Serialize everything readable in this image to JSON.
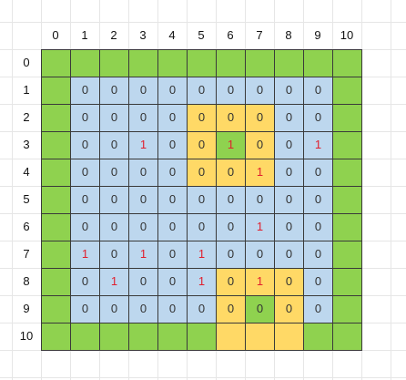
{
  "grid": {
    "column_headers": [
      "0",
      "1",
      "2",
      "3",
      "4",
      "5",
      "6",
      "7",
      "8",
      "9",
      "10"
    ],
    "row_headers": [
      "0",
      "1",
      "2",
      "3",
      "4",
      "5",
      "6",
      "7",
      "8",
      "9",
      "10"
    ],
    "colors": {
      "G": "#8fd24f",
      "B": "#bdd7ee",
      "Y": "#ffd966",
      "text": "#333333",
      "highlight_text": "#e0202e",
      "border": "#3a3a3a"
    },
    "legend_of_codes": "G = green border cell, B = blue cell, Y = yellow highlighted cell",
    "cell_colors": [
      [
        "G",
        "G",
        "G",
        "G",
        "G",
        "G",
        "G",
        "G",
        "G",
        "G",
        "G"
      ],
      [
        "G",
        "B",
        "B",
        "B",
        "B",
        "B",
        "B",
        "B",
        "B",
        "B",
        "G"
      ],
      [
        "G",
        "B",
        "B",
        "B",
        "B",
        "Y",
        "Y",
        "Y",
        "B",
        "B",
        "G"
      ],
      [
        "G",
        "B",
        "B",
        "B",
        "B",
        "Y",
        "G",
        "Y",
        "B",
        "B",
        "G"
      ],
      [
        "G",
        "B",
        "B",
        "B",
        "B",
        "Y",
        "Y",
        "Y",
        "B",
        "B",
        "G"
      ],
      [
        "G",
        "B",
        "B",
        "B",
        "B",
        "B",
        "B",
        "B",
        "B",
        "B",
        "G"
      ],
      [
        "G",
        "B",
        "B",
        "B",
        "B",
        "B",
        "B",
        "B",
        "B",
        "B",
        "G"
      ],
      [
        "G",
        "B",
        "B",
        "B",
        "B",
        "B",
        "B",
        "B",
        "B",
        "B",
        "G"
      ],
      [
        "G",
        "B",
        "B",
        "B",
        "B",
        "B",
        "Y",
        "Y",
        "Y",
        "B",
        "G"
      ],
      [
        "G",
        "B",
        "B",
        "B",
        "B",
        "B",
        "Y",
        "G",
        "Y",
        "B",
        "G"
      ],
      [
        "G",
        "G",
        "G",
        "G",
        "G",
        "G",
        "Y",
        "Y",
        "Y",
        "G",
        "G"
      ]
    ],
    "cell_values": [
      [
        "",
        "",
        "",
        "",
        "",
        "",
        "",
        "",
        "",
        "",
        ""
      ],
      [
        "",
        "0",
        "0",
        "0",
        "0",
        "0",
        "0",
        "0",
        "0",
        "0",
        ""
      ],
      [
        "",
        "0",
        "0",
        "0",
        "0",
        "0",
        "0",
        "0",
        "0",
        "0",
        ""
      ],
      [
        "",
        "0",
        "0",
        "1",
        "0",
        "0",
        "1",
        "0",
        "0",
        "1",
        ""
      ],
      [
        "",
        "0",
        "0",
        "0",
        "0",
        "0",
        "0",
        "1",
        "0",
        "0",
        ""
      ],
      [
        "",
        "0",
        "0",
        "0",
        "0",
        "0",
        "0",
        "0",
        "0",
        "0",
        ""
      ],
      [
        "",
        "0",
        "0",
        "0",
        "0",
        "0",
        "0",
        "1",
        "0",
        "0",
        ""
      ],
      [
        "",
        "1",
        "0",
        "1",
        "0",
        "1",
        "0",
        "0",
        "0",
        "0",
        ""
      ],
      [
        "",
        "0",
        "1",
        "0",
        "0",
        "1",
        "0",
        "1",
        "0",
        "0",
        ""
      ],
      [
        "",
        "0",
        "0",
        "0",
        "0",
        "0",
        "0",
        "0",
        "0",
        "0",
        ""
      ],
      [
        "",
        "",
        "",
        "",
        "",
        "",
        "",
        "",
        "",
        "",
        ""
      ]
    ]
  }
}
